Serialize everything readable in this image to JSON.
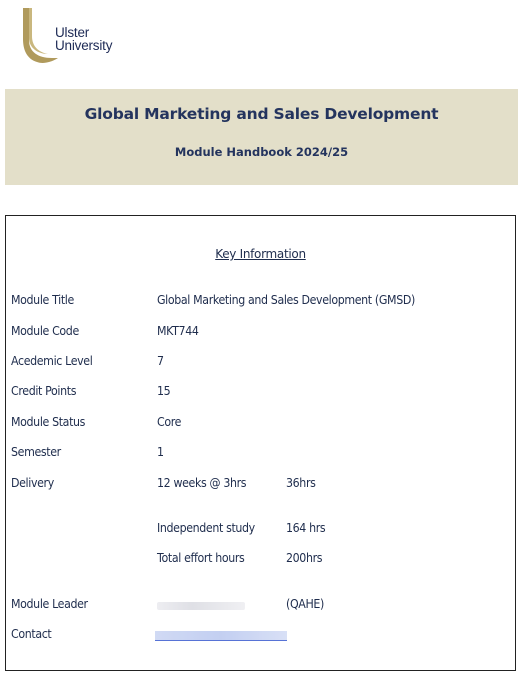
{
  "logo": {
    "line1": "Ulster",
    "line2": "University",
    "brand_color": "#b09a5c"
  },
  "banner": {
    "title": "Global Marketing and Sales Development",
    "subtitle": "Module Handbook 2024/25",
    "background": "#e3dfc9"
  },
  "key_info": {
    "heading": "Key Information",
    "rows": [
      {
        "label": "Module Title",
        "value": "Global Marketing and Sales Development (GMSD)",
        "value2": ""
      },
      {
        "label": "Module Code",
        "value": "MKT744",
        "value2": ""
      },
      {
        "label": "Acedemic Level",
        "value": "7",
        "value2": ""
      },
      {
        "label": "Credit Points",
        "value": "15",
        "value2": ""
      },
      {
        "label": "Module Status",
        "value": "Core",
        "value2": ""
      },
      {
        "label": "Semester",
        "value": "1",
        "value2": ""
      },
      {
        "label": "Delivery",
        "value": "12 weeks @ 3hrs",
        "value2": "36hrs"
      },
      {
        "label": "",
        "value": "Independent study",
        "value2": "164 hrs"
      },
      {
        "label": "",
        "value": "Total effort hours",
        "value2": "200hrs"
      },
      {
        "label": "Module Leader",
        "value": "",
        "value2": "(QAHE)"
      },
      {
        "label": "Contact",
        "value": "",
        "value2": ""
      }
    ]
  }
}
